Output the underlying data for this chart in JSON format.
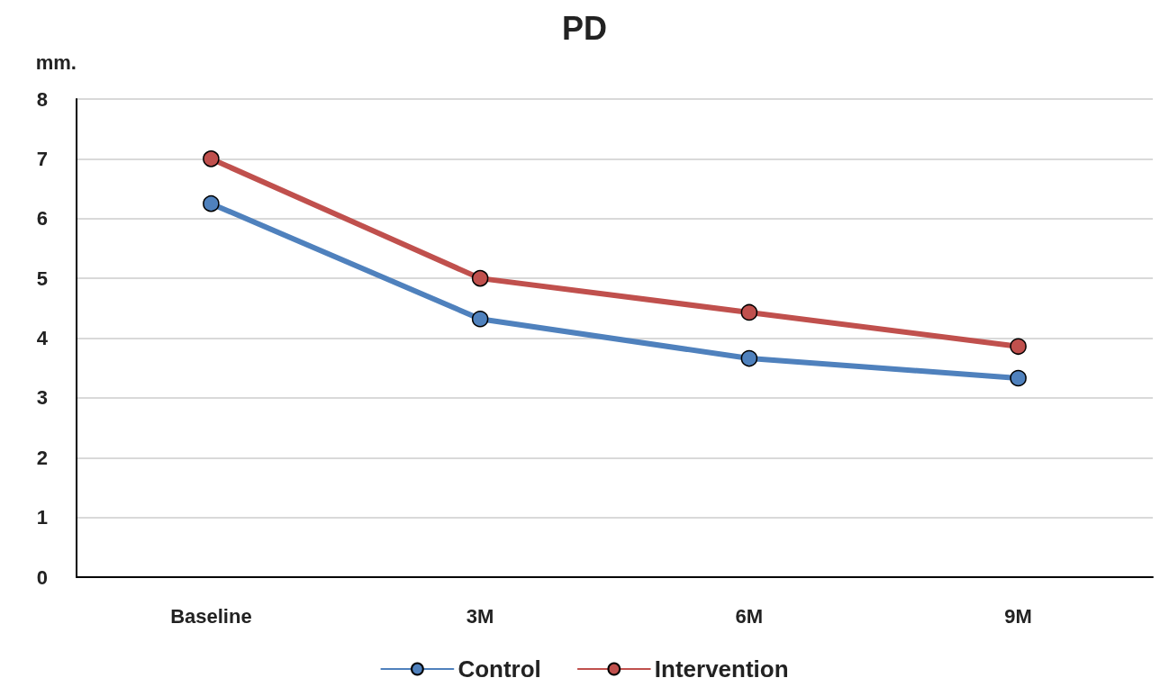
{
  "chart_data": {
    "type": "line",
    "title": "PD",
    "ylabel": "mm.",
    "categories": [
      "Baseline",
      "3M",
      "6M",
      "9M"
    ],
    "series": [
      {
        "name": "Control",
        "color": "#4f81bd",
        "values": [
          6.25,
          4.32,
          3.66,
          3.33
        ]
      },
      {
        "name": "Intervention",
        "color": "#c0504d",
        "values": [
          7.0,
          5.0,
          4.43,
          3.86
        ]
      }
    ],
    "ylim": [
      0,
      8
    ],
    "yticks": [
      0,
      1,
      2,
      3,
      4,
      5,
      6,
      7,
      8
    ],
    "grid": "y",
    "legend": "bottom",
    "marker": "circle",
    "line_style": "solid"
  }
}
